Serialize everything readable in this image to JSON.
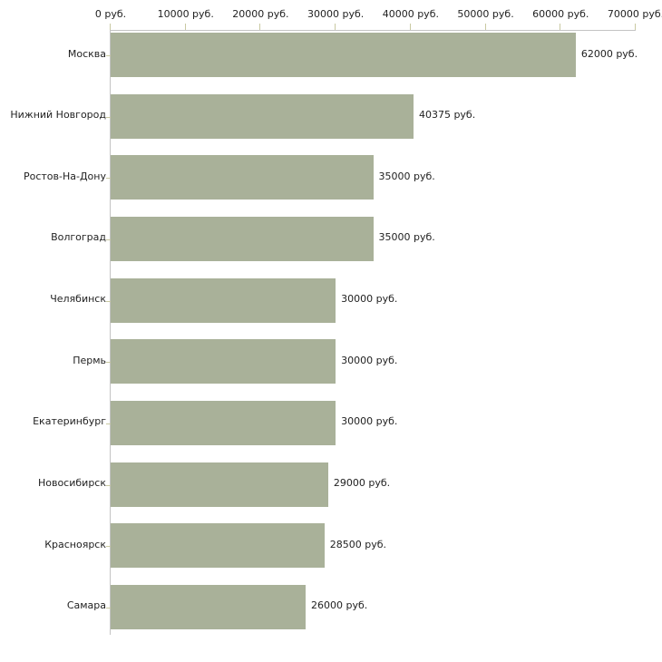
{
  "chart_data": {
    "type": "bar",
    "orientation": "horizontal",
    "title": "",
    "xlabel": "",
    "ylabel": "",
    "xlim": [
      0,
      70000
    ],
    "grid": false,
    "legend": false,
    "categories": [
      "Москва",
      "Нижний Новгород",
      "Ростов-На-Дону",
      "Волгоград",
      "Челябинск",
      "Пермь",
      "Екатеринбург",
      "Новосибирск",
      "Красноярск",
      "Самара"
    ],
    "values": [
      62000,
      40375,
      35000,
      35000,
      30000,
      30000,
      30000,
      29000,
      28500,
      26000
    ],
    "value_labels": [
      "62000 руб.",
      "40375 руб.",
      "35000 руб.",
      "35000 руб.",
      "30000 руб.",
      "30000 руб.",
      "30000 руб.",
      "29000 руб.",
      "28500 руб.",
      "26000 руб."
    ],
    "x_tick_values": [
      0,
      10000,
      20000,
      30000,
      40000,
      50000,
      60000,
      70000
    ],
    "x_tick_labels": [
      "0 руб.",
      "10000 руб.",
      "20000 руб.",
      "30000 руб.",
      "40000 руб.",
      "50000 руб.",
      "60000 руб.",
      "70000 руб."
    ],
    "colors": {
      "bar": "#a9b199",
      "axis": "#c4c4c4",
      "tick": "#c9c9a2",
      "text": "#222222",
      "background": "#ffffff"
    }
  }
}
